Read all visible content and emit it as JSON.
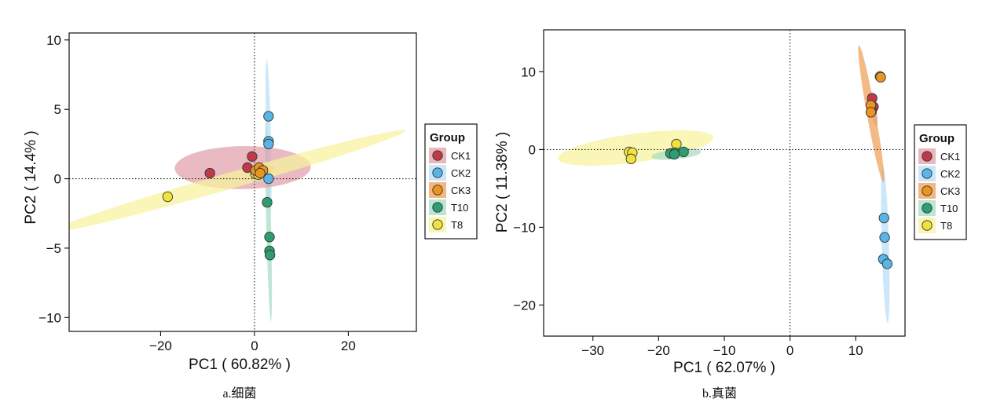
{
  "groups": [
    {
      "name": "CK1",
      "color": "#c0394a",
      "fill": "#e2a0aa"
    },
    {
      "name": "CK2",
      "color": "#5ab4e6",
      "fill": "#b9def7"
    },
    {
      "name": "CK3",
      "color": "#e8961f",
      "fill": "#ef9f56"
    },
    {
      "name": "T10",
      "color": "#2e9e72",
      "fill": "#a6dcc4"
    },
    {
      "name": "T8",
      "color": "#f1e23c",
      "fill": "#f7f29c"
    }
  ],
  "legend_title": "Group",
  "chart_data": [
    {
      "type": "scatter",
      "caption": "a.细菌",
      "xlabel": "PC1 ( 60.82% )",
      "ylabel": "PC2 ( 14.4% )",
      "xlim": [
        -39.5,
        34.5
      ],
      "ylim": [
        -11,
        10.5
      ],
      "xticks": [
        -20,
        0,
        20
      ],
      "yticks": [
        -10,
        -5,
        0,
        5,
        10
      ],
      "ellipse_order": [
        "T10",
        "CK2",
        "CK1",
        "CK3",
        "T8"
      ],
      "ellipses": {
        "T10": {
          "cx": 3.0,
          "cy": -3.0,
          "rx": 7.3,
          "ry": 0.5,
          "angle": -86.0
        },
        "CK2": {
          "cx": 3.0,
          "cy": 3.0,
          "rx": 5.6,
          "ry": 0.5,
          "angle": -86.0
        },
        "CK1": {
          "cx": -2.5,
          "cy": 0.8,
          "rx": 14.5,
          "ry": 1.55,
          "angle": 0.2
        },
        "CK3": {
          "cx": 1.6,
          "cy": 0.55,
          "rx": 2.6,
          "ry": 0.35,
          "angle": 5.0
        },
        "T8": {
          "cx": -5.6,
          "cy": -0.18,
          "rx": 38.0,
          "ry": 0.6,
          "angle": 5.5
        }
      },
      "points": {
        "CK1": [
          [
            -9.5,
            0.4
          ],
          [
            -1.5,
            0.8
          ],
          [
            -0.5,
            1.6
          ],
          [
            0.5,
            0.6
          ]
        ],
        "CK2": [
          [
            3.0,
            4.5
          ],
          [
            3.0,
            2.7
          ],
          [
            3.0,
            2.5
          ],
          [
            3.0,
            0.0
          ]
        ],
        "CK3": [
          [
            0.2,
            0.6
          ],
          [
            1.0,
            0.8
          ],
          [
            1.8,
            0.6
          ],
          [
            1.2,
            0.4
          ]
        ],
        "T10": [
          [
            2.7,
            -1.7
          ],
          [
            3.2,
            -4.2
          ],
          [
            3.2,
            -5.2
          ],
          [
            3.3,
            -5.5
          ]
        ],
        "T8": [
          [
            -18.5,
            -1.3
          ],
          [
            0.2,
            0.35
          ],
          [
            1.1,
            0.45
          ],
          [
            0.8,
            0.3
          ]
        ]
      }
    },
    {
      "type": "scatter",
      "caption": "b.真菌",
      "xlabel": "PC1 ( 62.07% )",
      "ylabel": "PC2 ( 11.38% )",
      "xlim": [
        -37.5,
        17.5
      ],
      "ylim": [
        -24,
        15.4
      ],
      "xticks": [
        -30,
        -20,
        -10,
        0,
        10
      ],
      "yticks": [
        -20,
        -10,
        0,
        10
      ],
      "ellipse_order": [
        "CK2",
        "T8",
        "T10",
        "CK1",
        "CK3"
      ],
      "ellipses": {
        "CK2": {
          "cx": 14.5,
          "cy": -12.2,
          "rx": 10.1,
          "ry": 0.55,
          "angle": -88.0
        },
        "T8": {
          "cx": -23.5,
          "cy": 0.2,
          "rx": 11.9,
          "ry": 1.85,
          "angle": 6.5
        },
        "T10": {
          "cx": -17.3,
          "cy": -0.6,
          "rx": 3.8,
          "ry": 0.65,
          "angle": 5.0
        },
        "CK1": {
          "cx": 12.7,
          "cy": 5.2,
          "rx": 2.2,
          "ry": 0.45,
          "angle": -78.0
        },
        "CK3": {
          "cx": 12.35,
          "cy": 4.6,
          "rx": 9.0,
          "ry": 0.65,
          "angle": -78.0
        }
      },
      "points": {
        "CK1": [
          [
            12.5,
            6.6
          ],
          [
            12.7,
            5.5
          ],
          [
            12.4,
            4.9
          ]
        ],
        "CK2": [
          [
            14.3,
            -8.8
          ],
          [
            14.4,
            -11.3
          ],
          [
            14.2,
            -14.1
          ],
          [
            14.8,
            -14.7
          ]
        ],
        "CK3": [
          [
            13.7,
            9.4
          ],
          [
            13.8,
            9.3
          ],
          [
            12.3,
            5.7
          ],
          [
            12.3,
            4.8
          ]
        ],
        "T10": [
          [
            -18.2,
            -0.5
          ],
          [
            -17.5,
            -0.4
          ],
          [
            -16.2,
            -0.3
          ],
          [
            -17.6,
            -0.6
          ]
        ],
        "T8": [
          [
            -24.5,
            -0.3
          ],
          [
            -24.0,
            -0.4
          ],
          [
            -24.2,
            -1.2
          ],
          [
            -17.3,
            0.7
          ]
        ]
      }
    }
  ]
}
